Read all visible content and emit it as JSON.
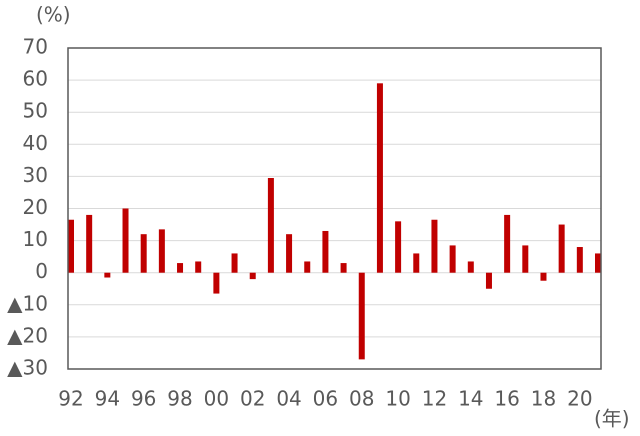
{
  "chart_data": {
    "type": "bar",
    "y_unit": "(%)",
    "x_unit": "(年)",
    "categories": [
      "92",
      null,
      "94",
      null,
      "96",
      null,
      "98",
      null,
      "00",
      null,
      "02",
      null,
      "04",
      null,
      "06",
      null,
      "08",
      null,
      "10",
      null,
      "12",
      null,
      "14",
      null,
      "16",
      null,
      "18",
      null,
      "20",
      null
    ],
    "values": [
      16.5,
      18,
      -1.5,
      20,
      12,
      13.5,
      3,
      3.5,
      -6.5,
      6,
      -2,
      29.5,
      12,
      3.5,
      13,
      3,
      -27,
      59,
      16,
      6,
      16.5,
      8.5,
      3.5,
      -5,
      18,
      8.5,
      -2.5,
      15,
      8,
      6
    ],
    "color": "#c00000",
    "ylim": [
      -30,
      70
    ],
    "yticks": [
      {
        "value": -30,
        "label": "▲30"
      },
      {
        "value": -20,
        "label": "▲20"
      },
      {
        "value": -10,
        "label": "▲10"
      },
      0,
      10,
      20,
      30,
      40,
      50,
      60,
      70
    ],
    "grid": true
  }
}
